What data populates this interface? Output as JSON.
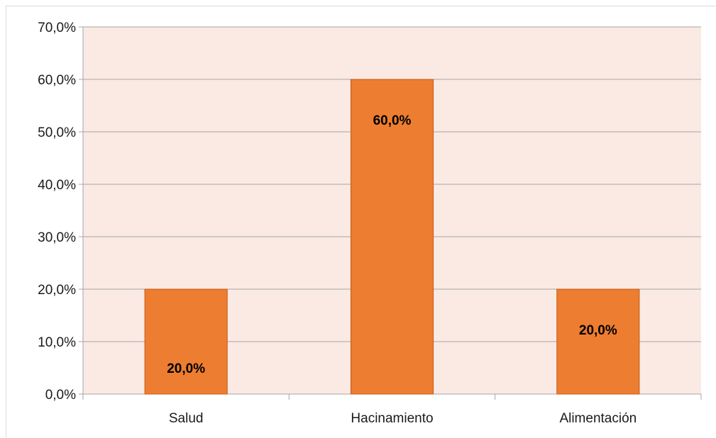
{
  "chart_data": {
    "type": "bar",
    "title": "",
    "xlabel": "",
    "ylabel": "",
    "categories": [
      "Salud",
      "Hacinamiento",
      "Alimentación"
    ],
    "values": [
      20.0,
      60.0,
      20.0
    ],
    "data_labels": [
      "20,0%",
      "60,0%",
      "20,0%"
    ],
    "ylim": [
      0,
      70
    ],
    "yticks": [
      0,
      10,
      20,
      30,
      40,
      50,
      60,
      70
    ],
    "ytick_labels": [
      "0,0%",
      "10,0%",
      "20,0%",
      "30,0%",
      "40,0%",
      "50,0%",
      "60,0%",
      "70,0%"
    ],
    "grid": true,
    "legend": "none",
    "colors": {
      "bar": "#ed7d31",
      "bar_border": "#c55a11",
      "plot_background": "#fbe9e4",
      "gridline": "#a6a6a6"
    }
  }
}
